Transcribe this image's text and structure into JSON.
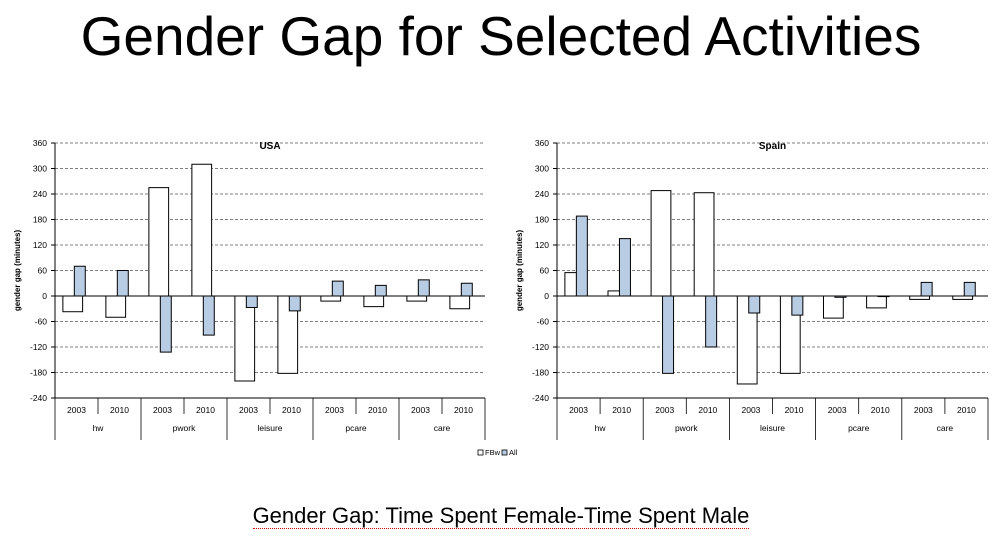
{
  "page": {
    "title": "Gender Gap for Selected Activities",
    "subtitle": "Gender Gap: Time Spent Female-Time Spent Male"
  },
  "colors": {
    "fbw": "#ffffff",
    "all": "#b8cce4",
    "stroke": "#000000"
  },
  "chart_data": [
    {
      "type": "bar",
      "title": "USA",
      "ylabel": "gender gap (minutes)",
      "ylim": [
        -240,
        360
      ],
      "yticks": [
        360,
        300,
        240,
        180,
        120,
        60,
        0,
        -60,
        -120,
        -180,
        -240
      ],
      "grid": true,
      "categories": [
        "2003",
        "2010",
        "2003",
        "2010",
        "2003",
        "2010",
        "2003",
        "2010",
        "2003",
        "2010"
      ],
      "groups": [
        "hw",
        "pwork",
        "leisure",
        "pcare",
        "care"
      ],
      "legend": [
        "FBw",
        "All"
      ],
      "legend_position": "bottom",
      "series": [
        {
          "name": "FBw",
          "values": [
            -37,
            -50,
            255,
            310,
            -200,
            -182,
            -12,
            -25,
            -12,
            -30
          ]
        },
        {
          "name": "All",
          "values": [
            70,
            60,
            -132,
            -92,
            -27,
            -35,
            35,
            25,
            38,
            30
          ]
        }
      ]
    },
    {
      "type": "bar",
      "title": "Spain",
      "ylabel": "gender gap (minutes)",
      "ylim": [
        -240,
        360
      ],
      "yticks": [
        360,
        300,
        240,
        180,
        120,
        60,
        0,
        -60,
        -120,
        -180,
        -240
      ],
      "grid": true,
      "categories": [
        "2003",
        "2010",
        "2003",
        "2010",
        "2003",
        "2010",
        "2003",
        "2010",
        "2003",
        "2010"
      ],
      "groups": [
        "hw",
        "pwork",
        "leisure",
        "pcare",
        "care"
      ],
      "legend": [
        "FBw",
        "All"
      ],
      "legend_position": "bottom",
      "series": [
        {
          "name": "FBw",
          "values": [
            55,
            12,
            248,
            243,
            -207,
            -182,
            -52,
            -28,
            -8,
            -8
          ]
        },
        {
          "name": "All",
          "values": [
            188,
            135,
            -182,
            -120,
            -40,
            -45,
            -3,
            0,
            32,
            32
          ]
        }
      ]
    }
  ]
}
